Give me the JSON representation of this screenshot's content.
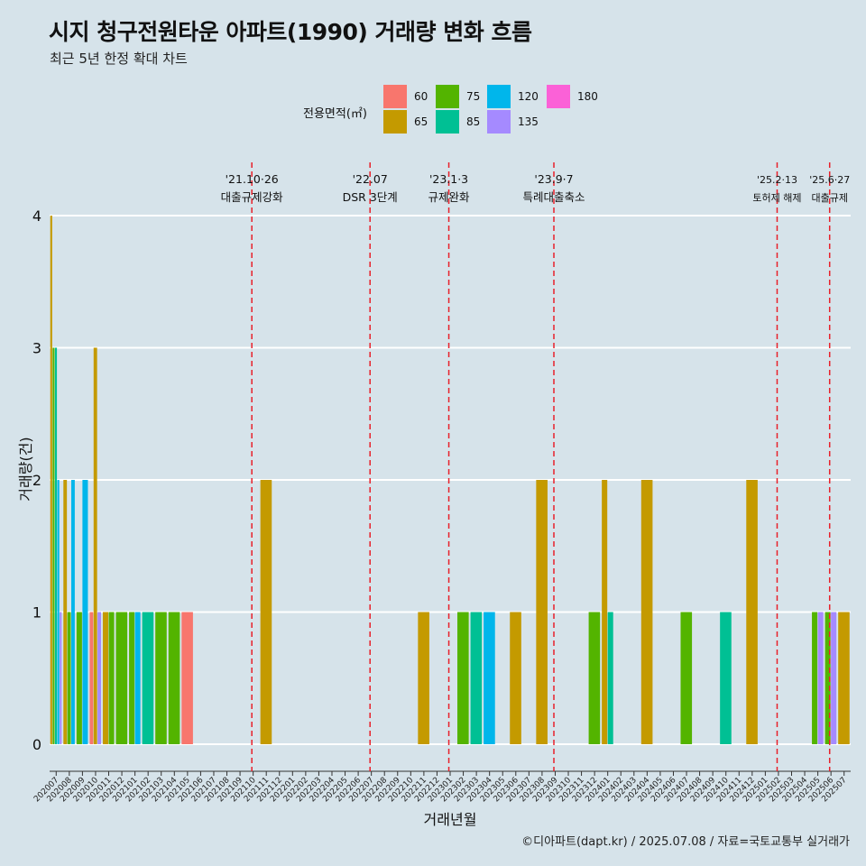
{
  "title": "시지 청구전원타운 아파트(1990) 거래량 변화 흐름",
  "subtitle": "최근 5년 한정 확대 차트",
  "caption": "©디아파트(dapt.kr) / 2025.07.08 / 자료=국토교통부 실거래가",
  "colors": {
    "60": "#f8766d",
    "65": "#c49a00",
    "75": "#53b400",
    "85": "#00c094",
    "120": "#00b6eb",
    "135": "#a58aff",
    "180": "#fb61d7"
  },
  "legend": {
    "title": "전용면적(㎡)",
    "items": [
      {
        "key": "60",
        "label": "60"
      },
      {
        "key": "65",
        "label": "65"
      },
      {
        "key": "75",
        "label": "75"
      },
      {
        "key": "85",
        "label": "85"
      },
      {
        "key": "120",
        "label": "120"
      },
      {
        "key": "135",
        "label": "135"
      },
      {
        "key": "180",
        "label": "180"
      }
    ]
  },
  "chart_data": {
    "type": "bar",
    "xlabel": "거래년월",
    "ylabel": "거래량(건)",
    "ylim": [
      0,
      4
    ],
    "yticks": [
      0,
      1,
      2,
      3,
      4
    ],
    "grid": true,
    "legend_position": "top",
    "categories": [
      "202007",
      "202008",
      "202009",
      "202010",
      "202011",
      "202012",
      "202101",
      "202102",
      "202103",
      "202104",
      "202105",
      "202106",
      "202107",
      "202108",
      "202109",
      "202110",
      "202111",
      "202112",
      "202201",
      "202202",
      "202203",
      "202204",
      "202205",
      "202206",
      "202207",
      "202208",
      "202209",
      "202210",
      "202211",
      "202212",
      "202301",
      "202302",
      "202303",
      "202304",
      "202305",
      "202306",
      "202307",
      "202308",
      "202309",
      "202310",
      "202311",
      "202312",
      "202401",
      "202402",
      "202403",
      "202404",
      "202405",
      "202406",
      "202407",
      "202408",
      "202409",
      "202410",
      "202411",
      "202412",
      "202501",
      "202502",
      "202503",
      "202504",
      "202505",
      "202506",
      "202507"
    ],
    "bars": [
      {
        "month": "202007",
        "values": [
          {
            "area": "65",
            "count": 4
          },
          {
            "area": "75",
            "count": 3
          },
          {
            "area": "85",
            "count": 3
          },
          {
            "area": "120",
            "count": 2
          },
          {
            "area": "135",
            "count": 1
          }
        ]
      },
      {
        "month": "202008",
        "values": [
          {
            "area": "65",
            "count": 2
          },
          {
            "area": "75",
            "count": 1
          },
          {
            "area": "120",
            "count": 2
          }
        ]
      },
      {
        "month": "202009",
        "values": [
          {
            "area": "75",
            "count": 1
          },
          {
            "area": "120",
            "count": 2
          }
        ]
      },
      {
        "month": "202010",
        "values": [
          {
            "area": "60",
            "count": 1
          },
          {
            "area": "65",
            "count": 3
          },
          {
            "area": "135",
            "count": 1
          }
        ]
      },
      {
        "month": "202011",
        "values": [
          {
            "area": "65",
            "count": 1
          },
          {
            "area": "75",
            "count": 1
          }
        ]
      },
      {
        "month": "202012",
        "values": [
          {
            "area": "75",
            "count": 1
          }
        ]
      },
      {
        "month": "202101",
        "values": [
          {
            "area": "75",
            "count": 1
          },
          {
            "area": "120",
            "count": 1
          }
        ]
      },
      {
        "month": "202102",
        "values": [
          {
            "area": "85",
            "count": 1
          }
        ]
      },
      {
        "month": "202103",
        "values": [
          {
            "area": "75",
            "count": 1
          }
        ]
      },
      {
        "month": "202104",
        "values": [
          {
            "area": "75",
            "count": 1
          }
        ]
      },
      {
        "month": "202105",
        "values": [
          {
            "area": "60",
            "count": 1
          }
        ]
      },
      {
        "month": "202111",
        "values": [
          {
            "area": "65",
            "count": 2
          }
        ]
      },
      {
        "month": "202211",
        "values": [
          {
            "area": "65",
            "count": 1
          }
        ]
      },
      {
        "month": "202302",
        "values": [
          {
            "area": "75",
            "count": 1
          }
        ]
      },
      {
        "month": "202303",
        "values": [
          {
            "area": "85",
            "count": 1
          }
        ]
      },
      {
        "month": "202304",
        "values": [
          {
            "area": "120",
            "count": 1
          }
        ]
      },
      {
        "month": "202306",
        "values": [
          {
            "area": "65",
            "count": 1
          }
        ]
      },
      {
        "month": "202308",
        "values": [
          {
            "area": "65",
            "count": 2
          }
        ]
      },
      {
        "month": "202312",
        "values": [
          {
            "area": "75",
            "count": 1
          }
        ]
      },
      {
        "month": "202401",
        "values": [
          {
            "area": "65",
            "count": 2
          },
          {
            "area": "85",
            "count": 1
          }
        ]
      },
      {
        "month": "202404",
        "values": [
          {
            "area": "65",
            "count": 2
          }
        ]
      },
      {
        "month": "202407",
        "values": [
          {
            "area": "75",
            "count": 1
          }
        ]
      },
      {
        "month": "202410",
        "values": [
          {
            "area": "85",
            "count": 1
          }
        ]
      },
      {
        "month": "202412",
        "values": [
          {
            "area": "65",
            "count": 2
          }
        ]
      },
      {
        "month": "202505",
        "values": [
          {
            "area": "75",
            "count": 1
          },
          {
            "area": "135",
            "count": 1
          }
        ]
      },
      {
        "month": "202506",
        "values": [
          {
            "area": "75",
            "count": 1
          },
          {
            "area": "135",
            "count": 1
          }
        ]
      },
      {
        "month": "202507",
        "values": [
          {
            "area": "65",
            "count": 1
          }
        ]
      }
    ],
    "events": [
      {
        "date": "'21.10·26",
        "label": "대출규제강화",
        "at": 15.4
      },
      {
        "date": "'22.07",
        "label": "DSR 3단계",
        "at": 24.4
      },
      {
        "date": "'23.1·3",
        "label": "규제완화",
        "at": 30.4
      },
      {
        "date": "'23.9·7",
        "label": "특례대출축소",
        "at": 38.4
      },
      {
        "date": "'25.2·13",
        "label": "토허제 해제",
        "at": 55.4
      },
      {
        "date": "'25.6·27",
        "label": "대출규제",
        "at": 59.4
      }
    ]
  }
}
